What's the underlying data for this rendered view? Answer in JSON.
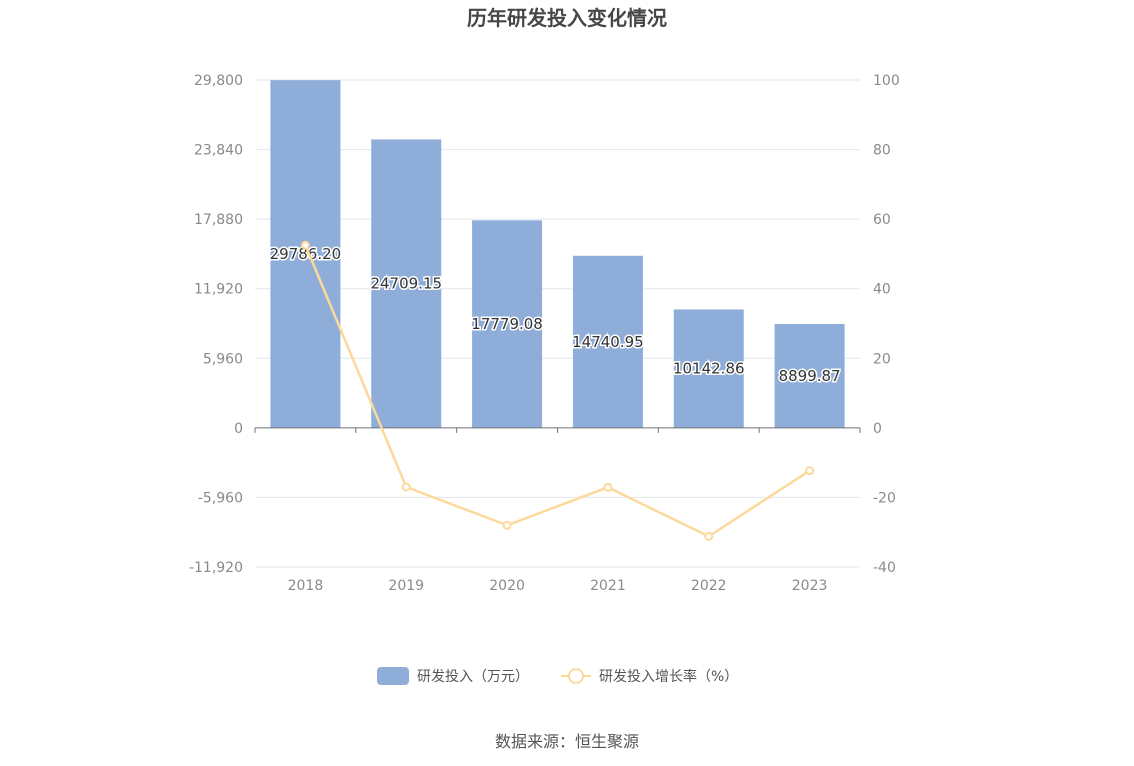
{
  "chart_data": {
    "type": "bar",
    "title": "历年研发投入变化情况",
    "categories": [
      "2018",
      "2019",
      "2020",
      "2021",
      "2022",
      "2023"
    ],
    "series": [
      {
        "name": "研发投入（万元）",
        "type": "bar",
        "axis": "left",
        "color": "#8eadd9",
        "values": [
          29786.2,
          24709.15,
          17779.08,
          14740.95,
          10142.86,
          8899.87
        ],
        "labels": [
          "29786.20",
          "24709.15",
          "17779.08",
          "14740.95",
          "10142.86",
          "8899.87"
        ]
      },
      {
        "name": "研发投入增长率（%）",
        "type": "line",
        "axis": "right",
        "color": "#fcd99a",
        "values": [
          52.5,
          -17.0,
          -28.0,
          -17.1,
          -31.2,
          -12.3
        ]
      }
    ],
    "y_left": {
      "min": -11920,
      "max": 29800,
      "ticks": [
        "29,800",
        "23,840",
        "17,880",
        "11,920",
        "5,960",
        "0",
        "-5,960",
        "-11,920"
      ],
      "tick_values": [
        29800,
        23840,
        17880,
        11920,
        5960,
        0,
        -5960,
        -11920
      ]
    },
    "y_right": {
      "min": -40,
      "max": 100,
      "ticks": [
        "100",
        "80",
        "60",
        "40",
        "20",
        "0",
        "-20",
        "-40"
      ],
      "tick_values": [
        100,
        80,
        60,
        40,
        20,
        0,
        -20,
        -40
      ]
    },
    "grid": true,
    "legend_position": "bottom-center",
    "source": "数据来源：恒生聚源"
  }
}
